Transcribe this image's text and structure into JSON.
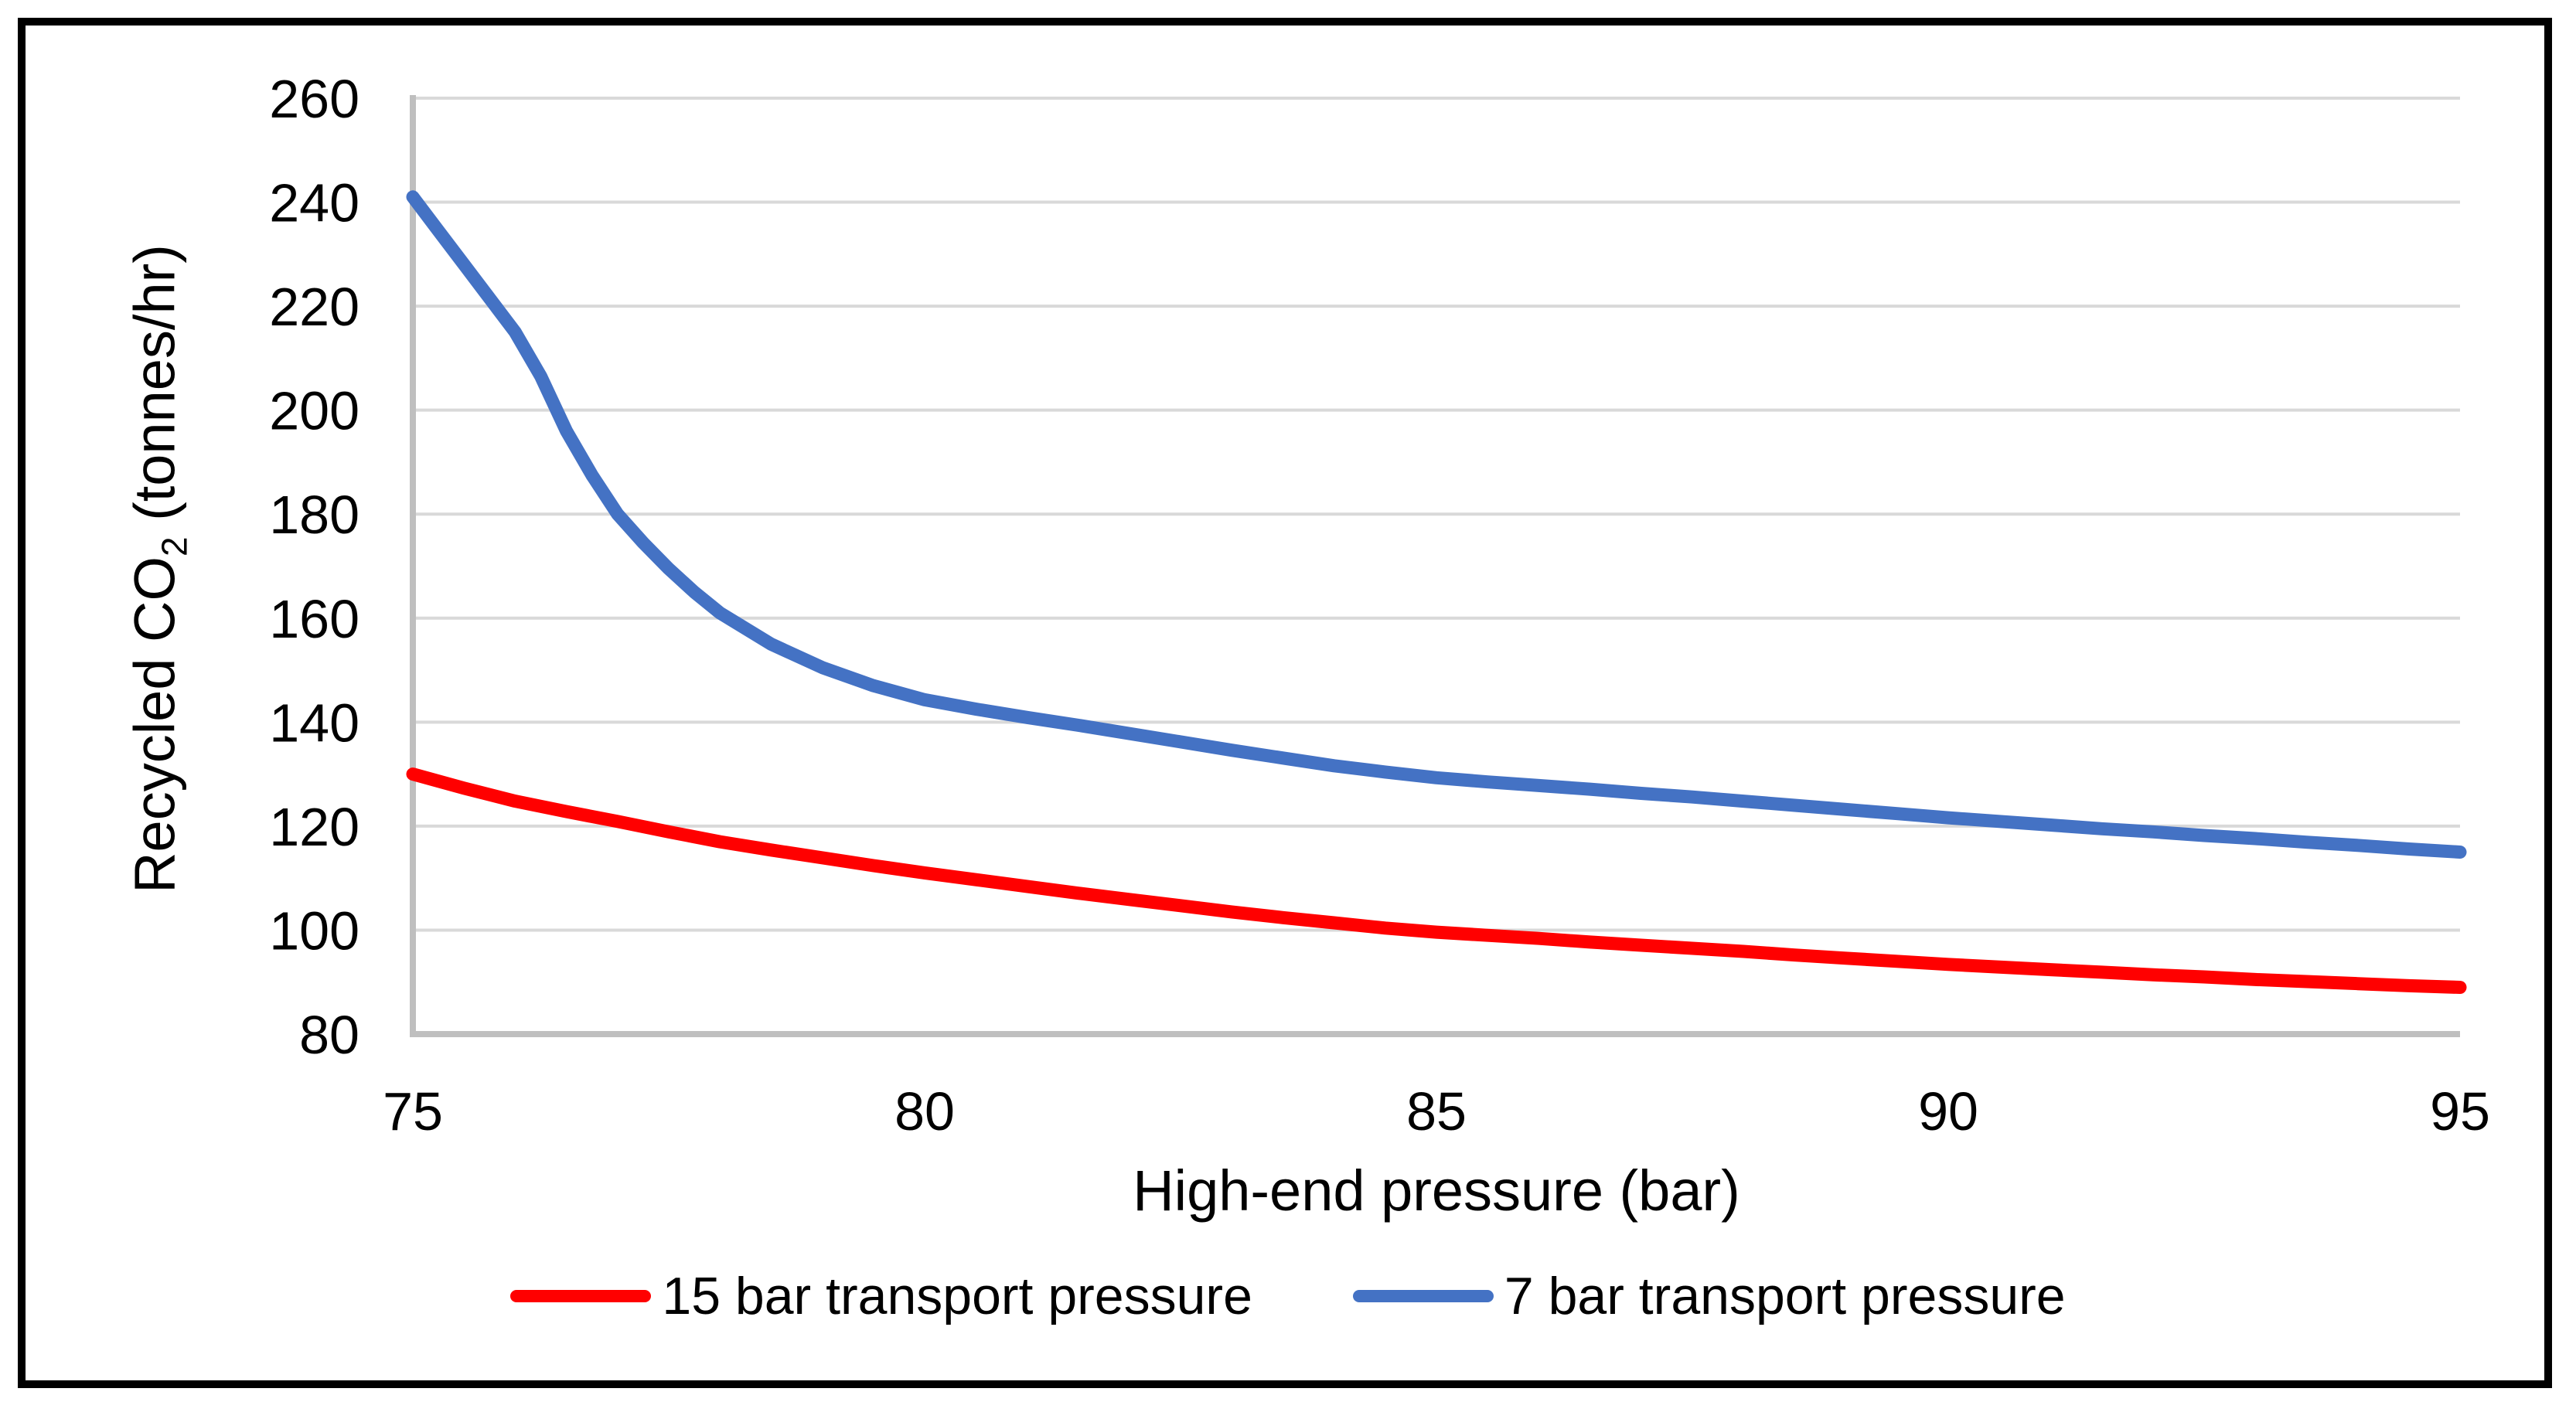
{
  "chart_data": {
    "type": "line",
    "title": "",
    "xlabel": "High-end pressure (bar)",
    "ylabel": {
      "prefix": "Recycled CO",
      "subscript": "2",
      "suffix": " (tonnes/hr)"
    },
    "xlim": [
      75,
      95
    ],
    "ylim": [
      80,
      260
    ],
    "x_ticks": [
      75,
      80,
      85,
      90,
      95
    ],
    "y_ticks": [
      260,
      240,
      220,
      200,
      180,
      160,
      140,
      120,
      100,
      80
    ],
    "grid": "horizontal-only",
    "legend_position": "bottom-center",
    "colors": {
      "background": "#ffffff",
      "frame_border": "#000000",
      "gridline": "#d9d9d9",
      "axis_line": "#bfbfbf",
      "tick_text": "#000000",
      "series_15bar": "#ff0000",
      "series_7bar": "#4472c4"
    },
    "series": [
      {
        "name": "15 bar transport pressure",
        "color": "#ff0000",
        "points": [
          [
            75,
            130
          ],
          [
            75.5,
            127.3
          ],
          [
            76,
            124.8
          ],
          [
            76.5,
            122.8
          ],
          [
            77,
            120.9
          ],
          [
            77.5,
            118.9
          ],
          [
            78,
            117
          ],
          [
            78.5,
            115.4
          ],
          [
            79,
            113.9
          ],
          [
            79.5,
            112.4
          ],
          [
            80,
            111
          ],
          [
            80.5,
            109.7
          ],
          [
            81,
            108.4
          ],
          [
            81.5,
            107.1
          ],
          [
            82,
            105.9
          ],
          [
            82.5,
            104.7
          ],
          [
            83,
            103.5
          ],
          [
            83.5,
            102.4
          ],
          [
            84,
            101.4
          ],
          [
            84.5,
            100.4
          ],
          [
            85,
            99.6
          ],
          [
            85.5,
            99
          ],
          [
            86,
            98.4
          ],
          [
            86.5,
            97.7
          ],
          [
            87,
            97.1
          ],
          [
            87.5,
            96.5
          ],
          [
            88,
            95.9
          ],
          [
            88.5,
            95.2
          ],
          [
            89,
            94.6
          ],
          [
            89.5,
            94
          ],
          [
            90,
            93.4
          ],
          [
            90.5,
            92.9
          ],
          [
            91,
            92.4
          ],
          [
            91.5,
            91.9
          ],
          [
            92,
            91.4
          ],
          [
            92.5,
            91
          ],
          [
            93,
            90.5
          ],
          [
            93.5,
            90.1
          ],
          [
            94,
            89.7
          ],
          [
            94.5,
            89.3
          ],
          [
            95,
            89
          ]
        ]
      },
      {
        "name": "7 bar transport pressure",
        "color": "#4472c4",
        "points": [
          [
            75,
            241
          ],
          [
            75.25,
            234.5
          ],
          [
            75.5,
            228
          ],
          [
            75.75,
            221.5
          ],
          [
            76,
            215
          ],
          [
            76.25,
            206.5
          ],
          [
            76.5,
            196
          ],
          [
            76.75,
            187.5
          ],
          [
            77,
            180
          ],
          [
            77.25,
            174.5
          ],
          [
            77.5,
            169.5
          ],
          [
            77.75,
            165
          ],
          [
            78,
            161
          ],
          [
            78.5,
            155
          ],
          [
            79,
            150.5
          ],
          [
            79.5,
            147
          ],
          [
            80,
            144.3
          ],
          [
            80.5,
            142.5
          ],
          [
            81,
            140.9
          ],
          [
            81.5,
            139.4
          ],
          [
            82,
            137.8
          ],
          [
            82.5,
            136.2
          ],
          [
            83,
            134.6
          ],
          [
            83.5,
            133.1
          ],
          [
            84,
            131.6
          ],
          [
            84.5,
            130.4
          ],
          [
            85,
            129.3
          ],
          [
            85.5,
            128.5
          ],
          [
            86,
            127.8
          ],
          [
            86.5,
            127.1
          ],
          [
            87,
            126.3
          ],
          [
            87.5,
            125.6
          ],
          [
            88,
            124.8
          ],
          [
            88.5,
            124
          ],
          [
            89,
            123.2
          ],
          [
            89.5,
            122.4
          ],
          [
            90,
            121.6
          ],
          [
            90.5,
            120.9
          ],
          [
            91,
            120.2
          ],
          [
            91.5,
            119.5
          ],
          [
            92,
            118.9
          ],
          [
            92.5,
            118.2
          ],
          [
            93,
            117.6
          ],
          [
            93.5,
            116.9
          ],
          [
            94,
            116.3
          ],
          [
            94.5,
            115.6
          ],
          [
            95,
            115
          ]
        ]
      }
    ]
  }
}
